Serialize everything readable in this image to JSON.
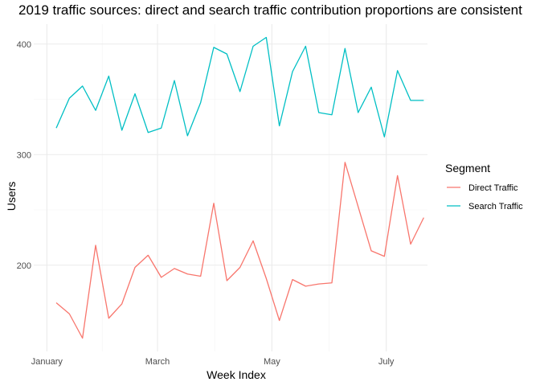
{
  "chart_data": {
    "type": "line",
    "title": "2019 traffic sources: direct and search traffic contribution proportions are consistent",
    "xlabel": "Week Index",
    "ylabel": "Users",
    "x_ticks": [
      "January",
      "March",
      "May",
      "July"
    ],
    "x_tick_dates": [
      "2019-01-01",
      "2019-03-01",
      "2019-05-01",
      "2019-07-01"
    ],
    "x_range": [
      "2018-12-25",
      "2019-07-23"
    ],
    "y_ticks": [
      200,
      300,
      400
    ],
    "ylim": [
      122,
      418
    ],
    "grid": true,
    "legend": {
      "title": "Segment",
      "position": "right"
    },
    "x": [
      "2019-01-06",
      "2019-01-13",
      "2019-01-20",
      "2019-01-27",
      "2019-02-03",
      "2019-02-10",
      "2019-02-17",
      "2019-02-24",
      "2019-03-03",
      "2019-03-10",
      "2019-03-17",
      "2019-03-24",
      "2019-03-31",
      "2019-04-07",
      "2019-04-14",
      "2019-04-21",
      "2019-04-28",
      "2019-05-05",
      "2019-05-12",
      "2019-05-19",
      "2019-05-26",
      "2019-06-02",
      "2019-06-09",
      "2019-06-16",
      "2019-06-23",
      "2019-06-30",
      "2019-07-07",
      "2019-07-14",
      "2019-07-21"
    ],
    "series": [
      {
        "name": "Direct Traffic",
        "color": "#F8766D",
        "values": [
          166,
          156,
          134,
          218,
          152,
          165,
          198,
          209,
          189,
          197,
          192,
          190,
          256,
          186,
          198,
          222,
          188,
          150,
          187,
          181,
          183,
          184,
          293,
          253,
          213,
          208,
          281,
          219,
          243
        ]
      },
      {
        "name": "Search Traffic",
        "color": "#00BFC4",
        "values": [
          324,
          351,
          362,
          340,
          371,
          322,
          355,
          320,
          324,
          367,
          317,
          347,
          397,
          391,
          357,
          398,
          406,
          326,
          375,
          398,
          338,
          336,
          396,
          338,
          361,
          316,
          376,
          349,
          349
        ]
      }
    ]
  }
}
